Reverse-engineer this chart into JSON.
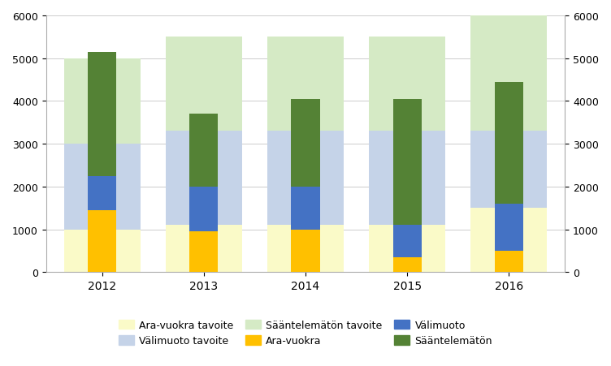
{
  "years": [
    "2012",
    "2013",
    "2014",
    "2015",
    "2016"
  ],
  "target_ara": [
    1000,
    1100,
    1100,
    1100,
    1500
  ],
  "target_vali": [
    2000,
    2200,
    2200,
    2200,
    1800
  ],
  "target_saan": [
    2000,
    2200,
    2200,
    2200,
    2700
  ],
  "actual_ara": [
    1450,
    950,
    1000,
    350,
    500
  ],
  "actual_vali": [
    800,
    1050,
    1000,
    750,
    1100
  ],
  "actual_saan": [
    2900,
    1700,
    2050,
    2950,
    2850
  ],
  "color_target_ara": "#FAFAC8",
  "color_target_vali": "#C5D3E8",
  "color_target_saan": "#D5EAC5",
  "color_actual_ara": "#FFC000",
  "color_actual_vali": "#4472C4",
  "color_actual_saan": "#548235",
  "ylim": [
    0,
    6000
  ],
  "yticks": [
    0,
    1000,
    2000,
    3000,
    4000,
    5000,
    6000
  ],
  "background_color": "#FFFFFF",
  "target_bar_width": 0.75,
  "actual_bar_width": 0.28
}
